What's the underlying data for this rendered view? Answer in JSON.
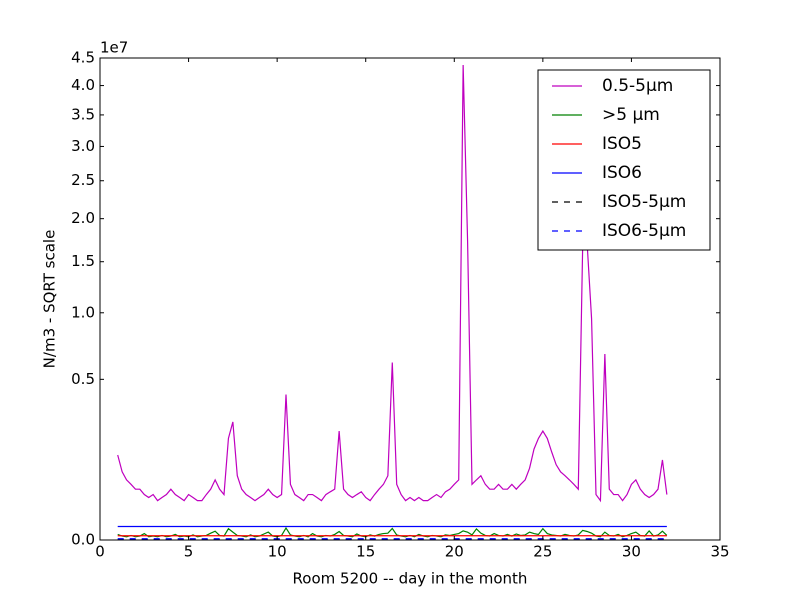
{
  "chart_data": {
    "type": "line",
    "xlabel": "Room 5200 -- day in the month",
    "ylabel": "N/m3 - SQRT scale",
    "y_offset_label": "1e7",
    "yscale": "sqrt",
    "xlim": [
      0,
      35
    ],
    "ylim": [
      0,
      4.5
    ],
    "xticks": [
      0,
      5,
      10,
      15,
      20,
      25,
      30,
      35
    ],
    "yticks": [
      {
        "value": 0,
        "label": "0.0"
      },
      {
        "value": 0.5,
        "label": "0.5"
      },
      {
        "value": 1,
        "label": "1.0"
      },
      {
        "value": 1.5,
        "label": "1.5"
      },
      {
        "value": 2,
        "label": "2.0"
      },
      {
        "value": 2.5,
        "label": "2.5"
      },
      {
        "value": 3,
        "label": "3.0"
      },
      {
        "value": 3.5,
        "label": "3.5"
      },
      {
        "value": 4,
        "label": "4.0"
      },
      {
        "value": 4.5,
        "label": "4.5"
      }
    ],
    "legend": "upper right",
    "x": [
      1,
      1.25,
      1.5,
      1.75,
      2,
      2.25,
      2.5,
      2.75,
      3,
      3.25,
      3.5,
      3.75,
      4,
      4.25,
      4.5,
      4.75,
      5,
      5.25,
      5.5,
      5.75,
      6,
      6.25,
      6.5,
      6.75,
      7,
      7.25,
      7.5,
      7.75,
      8,
      8.25,
      8.5,
      8.75,
      9,
      9.25,
      9.5,
      9.75,
      10,
      10.25,
      10.5,
      10.75,
      11,
      11.25,
      11.5,
      11.75,
      12,
      12.25,
      12.5,
      12.75,
      13,
      13.25,
      13.5,
      13.75,
      14,
      14.25,
      14.5,
      14.75,
      15,
      15.25,
      15.5,
      15.75,
      16,
      16.25,
      16.5,
      16.75,
      17,
      17.25,
      17.5,
      17.75,
      18,
      18.25,
      18.5,
      18.75,
      19,
      19.25,
      19.5,
      19.75,
      20,
      20.25,
      20.5,
      20.75,
      21,
      21.25,
      21.5,
      21.75,
      22,
      22.25,
      22.5,
      22.75,
      23,
      23.25,
      23.5,
      23.75,
      24,
      24.25,
      24.5,
      24.75,
      25,
      25.25,
      25.5,
      25.75,
      26,
      26.25,
      26.5,
      26.75,
      27,
      27.25,
      27.5,
      27.75,
      28,
      28.25,
      28.5,
      28.75,
      29,
      29.25,
      29.5,
      29.75,
      30,
      30.25,
      30.5,
      30.75,
      31,
      31.25,
      31.5,
      31.75,
      32
    ],
    "series": [
      {
        "name": "0.5-5µm",
        "color": "#bf00bf",
        "values": [
          0.14,
          0.09,
          0.07,
          0.06,
          0.05,
          0.05,
          0.04,
          0.035,
          0.04,
          0.03,
          0.035,
          0.04,
          0.05,
          0.04,
          0.035,
          0.03,
          0.04,
          0.035,
          0.03,
          0.03,
          0.04,
          0.05,
          0.07,
          0.05,
          0.04,
          0.2,
          0.27,
          0.08,
          0.05,
          0.04,
          0.035,
          0.03,
          0.035,
          0.04,
          0.05,
          0.04,
          0.035,
          0.04,
          0.41,
          0.06,
          0.04,
          0.035,
          0.03,
          0.04,
          0.04,
          0.035,
          0.03,
          0.04,
          0.045,
          0.05,
          0.23,
          0.05,
          0.04,
          0.035,
          0.04,
          0.045,
          0.035,
          0.03,
          0.04,
          0.05,
          0.06,
          0.08,
          0.61,
          0.06,
          0.04,
          0.03,
          0.035,
          0.03,
          0.035,
          0.03,
          0.03,
          0.035,
          0.04,
          0.035,
          0.045,
          0.05,
          0.06,
          0.07,
          4.37,
          1.74,
          0.06,
          0.07,
          0.08,
          0.06,
          0.05,
          0.05,
          0.06,
          0.05,
          0.05,
          0.06,
          0.05,
          0.06,
          0.07,
          0.1,
          0.16,
          0.2,
          0.23,
          0.2,
          0.15,
          0.11,
          0.09,
          0.08,
          0.07,
          0.06,
          0.05,
          1.7,
          1.7,
          0.95,
          0.04,
          0.03,
          0.67,
          0.05,
          0.04,
          0.04,
          0.03,
          0.04,
          0.06,
          0.07,
          0.05,
          0.04,
          0.035,
          0.04,
          0.05,
          0.124,
          0.04
        ]
      },
      {
        "name": ">5 µm",
        "color": "#008000",
        "values": [
          0.0006,
          0.0003,
          0.0002,
          0.0004,
          0.0002,
          0.0003,
          0.0008,
          0.0002,
          0.0003,
          0.0002,
          0.0004,
          0.0002,
          0.0003,
          0.0006,
          0.0002,
          0.0003,
          0.0002,
          0.0005,
          0.0002,
          0.0003,
          0.0004,
          0.0009,
          0.0015,
          0.0004,
          0.0003,
          0.0025,
          0.0012,
          0.0004,
          0.0003,
          0.0002,
          0.0005,
          0.0002,
          0.0003,
          0.0007,
          0.0012,
          0.0003,
          0.0002,
          0.0004,
          0.0028,
          0.0005,
          0.0003,
          0.0002,
          0.0004,
          0.0002,
          0.0008,
          0.0003,
          0.0002,
          0.0004,
          0.0003,
          0.0006,
          0.0014,
          0.0004,
          0.0003,
          0.0002,
          0.0007,
          0.0003,
          0.0002,
          0.0005,
          0.0003,
          0.0006,
          0.0008,
          0.0009,
          0.0026,
          0.0005,
          0.0003,
          0.0002,
          0.0004,
          0.0002,
          0.0006,
          0.0003,
          0.0002,
          0.0004,
          0.0003,
          0.0002,
          0.0005,
          0.0004,
          0.0006,
          0.0008,
          0.0016,
          0.0012,
          0.0005,
          0.0024,
          0.0009,
          0.0004,
          0.0003,
          0.0008,
          0.0004,
          0.0003,
          0.0006,
          0.0003,
          0.0007,
          0.0004,
          0.0005,
          0.0012,
          0.0008,
          0.0006,
          0.0025,
          0.0008,
          0.0005,
          0.0004,
          0.0003,
          0.0006,
          0.0004,
          0.0003,
          0.0005,
          0.0018,
          0.0014,
          0.0009,
          0.0003,
          0.0002,
          0.0012,
          0.0004,
          0.0003,
          0.0006,
          0.0002,
          0.0004,
          0.0008,
          0.0012,
          0.0004,
          0.0003,
          0.0016,
          0.0003,
          0.0005,
          0.0015,
          0.0004
        ]
      },
      {
        "name": "ISO5",
        "color": "#ff0000",
        "x": [
          1,
          32
        ],
        "values": [
          0.000352,
          0.000352
        ]
      },
      {
        "name": "ISO6",
        "color": "#0000ff",
        "x": [
          1,
          32
        ],
        "values": [
          0.00352,
          0.00352
        ]
      },
      {
        "name": "ISO5-5µm",
        "color": "#000000",
        "dashed": true,
        "x": [
          1,
          32
        ],
        "values": [
          2.9e-06,
          2.9e-06
        ]
      },
      {
        "name": "ISO6-5µm",
        "color": "#0000ff",
        "dashed": true,
        "x": [
          1,
          32
        ],
        "values": [
          2.93e-05,
          2.93e-05
        ]
      }
    ]
  }
}
